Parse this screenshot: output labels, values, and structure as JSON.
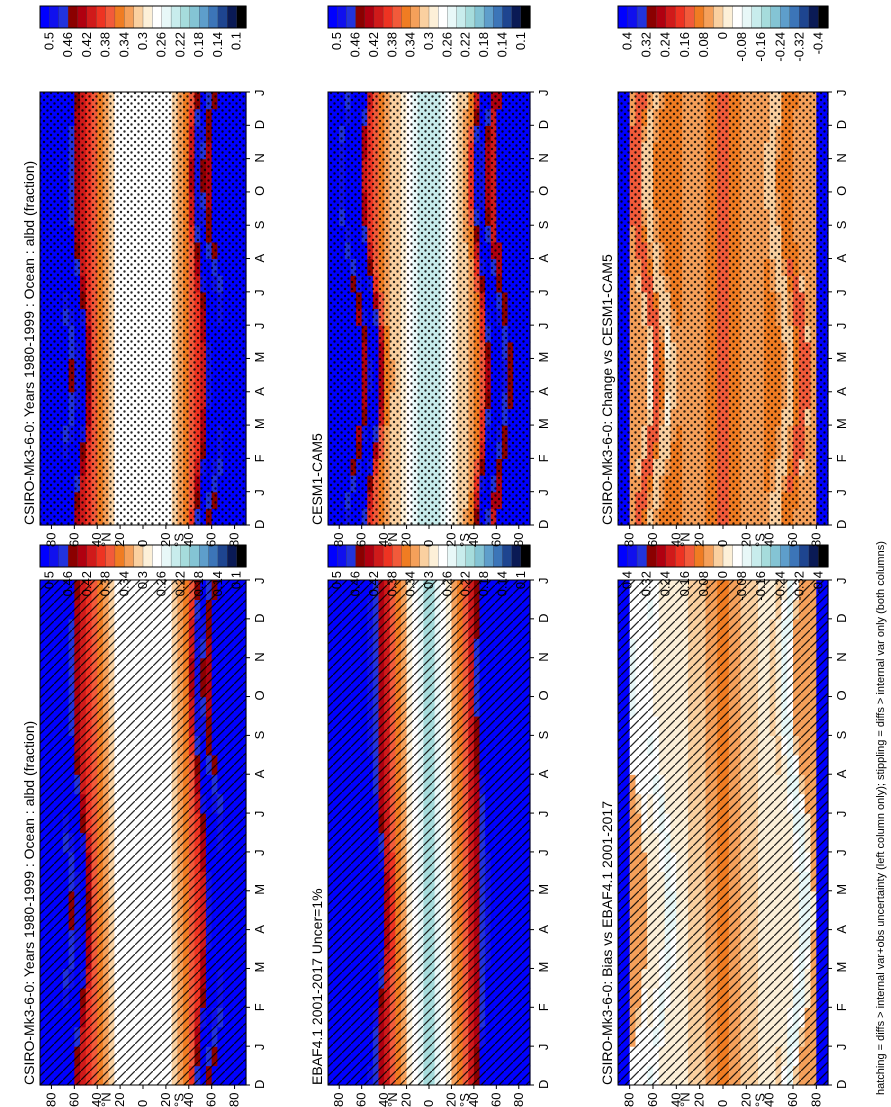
{
  "caption": "hatching = diffs > internal var+obs uncertainty (left column only); stippling = diffs > internal var only (both columns)",
  "colors": {
    "abs": [
      "#0000ff",
      "#1010ee",
      "#2233dd",
      "#8b0000",
      "#b00010",
      "#d01a1a",
      "#ee3322",
      "#f25a3a",
      "#f07c22",
      "#f5a05a",
      "#fad0a0",
      "#fdf0d8",
      "#ffffff",
      "#e8f8f8",
      "#c8ecec",
      "#a6dcdc",
      "#84c4d4",
      "#5e9ecb",
      "#3c75b8",
      "#1e4590",
      "#0a1a55",
      "#000000"
    ],
    "diff": [
      "#0000ff",
      "#1010ee",
      "#2233dd",
      "#8b0000",
      "#b00010",
      "#d01a1a",
      "#ee3322",
      "#f25a3a",
      "#f07c22",
      "#f5a05a",
      "#fad0a0",
      "#fdf0d8",
      "#ffffff",
      "#e8f8f8",
      "#c8ecec",
      "#a6dcdc",
      "#84c4d4",
      "#5e9ecb",
      "#3c75b8",
      "#1e4590",
      "#0a1a55",
      "#000000"
    ]
  },
  "chart_data": [
    {
      "type": "heatmap",
      "id": "p1",
      "title": "CSIRO-Mk3-6-0: Years 1980-1999 : Ocean : albd (fraction)",
      "x_ticks": [
        "D",
        "J",
        "F",
        "M",
        "A",
        "M",
        "J",
        "J",
        "A",
        "S",
        "O",
        "N",
        "D",
        "J"
      ],
      "y_ticks": [
        "80",
        "60",
        "40",
        "20",
        "0",
        "20",
        "40",
        "60",
        "80"
      ],
      "y_unit_n": "°N",
      "y_unit_s": "°S",
      "colorbar_ticks": [
        "0.5",
        "0.46",
        "0.42",
        "0.38",
        "0.34",
        "0.3",
        "0.26",
        "0.22",
        "0.18",
        "0.14",
        "0.1"
      ],
      "colorbar_range": [
        0.1,
        0.5
      ],
      "palette": "abs",
      "field": "model",
      "hatching": true,
      "stippling": false
    },
    {
      "type": "heatmap",
      "id": "p2",
      "title": "CSIRO-Mk3-6-0: Years 1980-1999 : Ocean : albd (fraction)",
      "x_ticks": [
        "D",
        "J",
        "F",
        "M",
        "A",
        "M",
        "J",
        "J",
        "A",
        "S",
        "O",
        "N",
        "D",
        "J"
      ],
      "y_ticks": [
        "80",
        "60",
        "40",
        "20",
        "0",
        "20",
        "40",
        "60",
        "80"
      ],
      "y_unit_n": "°N",
      "y_unit_s": "°S",
      "colorbar_ticks": [
        "0.5",
        "0.46",
        "0.42",
        "0.38",
        "0.34",
        "0.3",
        "0.26",
        "0.22",
        "0.18",
        "0.14",
        "0.1"
      ],
      "colorbar_range": [
        0.1,
        0.5
      ],
      "palette": "abs",
      "field": "model",
      "hatching": false,
      "stippling": true
    },
    {
      "type": "heatmap",
      "id": "p3",
      "title": "EBAF4.1 2001-2017 Uncer=1%",
      "x_ticks": [
        "D",
        "J",
        "F",
        "M",
        "A",
        "M",
        "J",
        "J",
        "A",
        "S",
        "O",
        "N",
        "D",
        "J"
      ],
      "y_ticks": [
        "80",
        "60",
        "40",
        "20",
        "0",
        "20",
        "40",
        "60",
        "80"
      ],
      "y_unit_n": "°N",
      "y_unit_s": "°S",
      "colorbar_ticks": [
        "0.5",
        "0.46",
        "0.42",
        "0.38",
        "0.34",
        "0.3",
        "0.26",
        "0.22",
        "0.18",
        "0.14",
        "0.1"
      ],
      "colorbar_range": [
        0.1,
        0.5
      ],
      "palette": "abs",
      "field": "obs",
      "hatching": true,
      "stippling": false
    },
    {
      "type": "heatmap",
      "id": "p4",
      "title": "CESM1-CAM5",
      "x_ticks": [
        "D",
        "J",
        "F",
        "M",
        "A",
        "M",
        "J",
        "J",
        "A",
        "S",
        "O",
        "N",
        "D",
        "J"
      ],
      "y_ticks": [
        "80",
        "60",
        "40",
        "20",
        "0",
        "20",
        "40",
        "60",
        "80"
      ],
      "y_unit_n": "°N",
      "y_unit_s": "°S",
      "colorbar_ticks": [
        "0.5",
        "0.46",
        "0.42",
        "0.38",
        "0.34",
        "0.3",
        "0.26",
        "0.22",
        "0.18",
        "0.14",
        "0.1"
      ],
      "colorbar_range": [
        0.1,
        0.5
      ],
      "palette": "abs",
      "field": "cesm",
      "hatching": false,
      "stippling": true
    },
    {
      "type": "heatmap",
      "id": "p5",
      "title": "CSIRO-Mk3-6-0: Bias vs EBAF4.1 2001-2017",
      "x_ticks": [
        "D",
        "J",
        "F",
        "M",
        "A",
        "M",
        "J",
        "J",
        "A",
        "S",
        "O",
        "N",
        "D",
        "J"
      ],
      "y_ticks": [
        "80",
        "60",
        "40",
        "20",
        "0",
        "20",
        "40",
        "60",
        "80"
      ],
      "y_unit_n": "°N",
      "y_unit_s": "°S",
      "colorbar_ticks": [
        "0.4",
        "0.32",
        "0.24",
        "0.16",
        "0.08",
        "0",
        "-0.08",
        "-0.16",
        "-0.24",
        "-0.32",
        "-0.4"
      ],
      "colorbar_range": [
        -0.4,
        0.4
      ],
      "palette": "diff",
      "field": "bias",
      "hatching": true,
      "stippling": false
    },
    {
      "type": "heatmap",
      "id": "p6",
      "title": "CSIRO-Mk3-6-0: Change vs CESM1-CAM5",
      "x_ticks": [
        "D",
        "J",
        "F",
        "M",
        "A",
        "M",
        "J",
        "J",
        "A",
        "S",
        "O",
        "N",
        "D",
        "J"
      ],
      "y_ticks": [
        "80",
        "60",
        "40",
        "20",
        "0",
        "20",
        "40",
        "60",
        "80"
      ],
      "y_unit_n": "°N",
      "y_unit_s": "°S",
      "colorbar_ticks": [
        "0.4",
        "0.32",
        "0.24",
        "0.16",
        "0.08",
        "0",
        "-0.08",
        "-0.16",
        "-0.24",
        "-0.32",
        "-0.4"
      ],
      "colorbar_range": [
        -0.4,
        0.4
      ],
      "palette": "diff",
      "field": "change",
      "hatching": false,
      "stippling": true
    }
  ]
}
